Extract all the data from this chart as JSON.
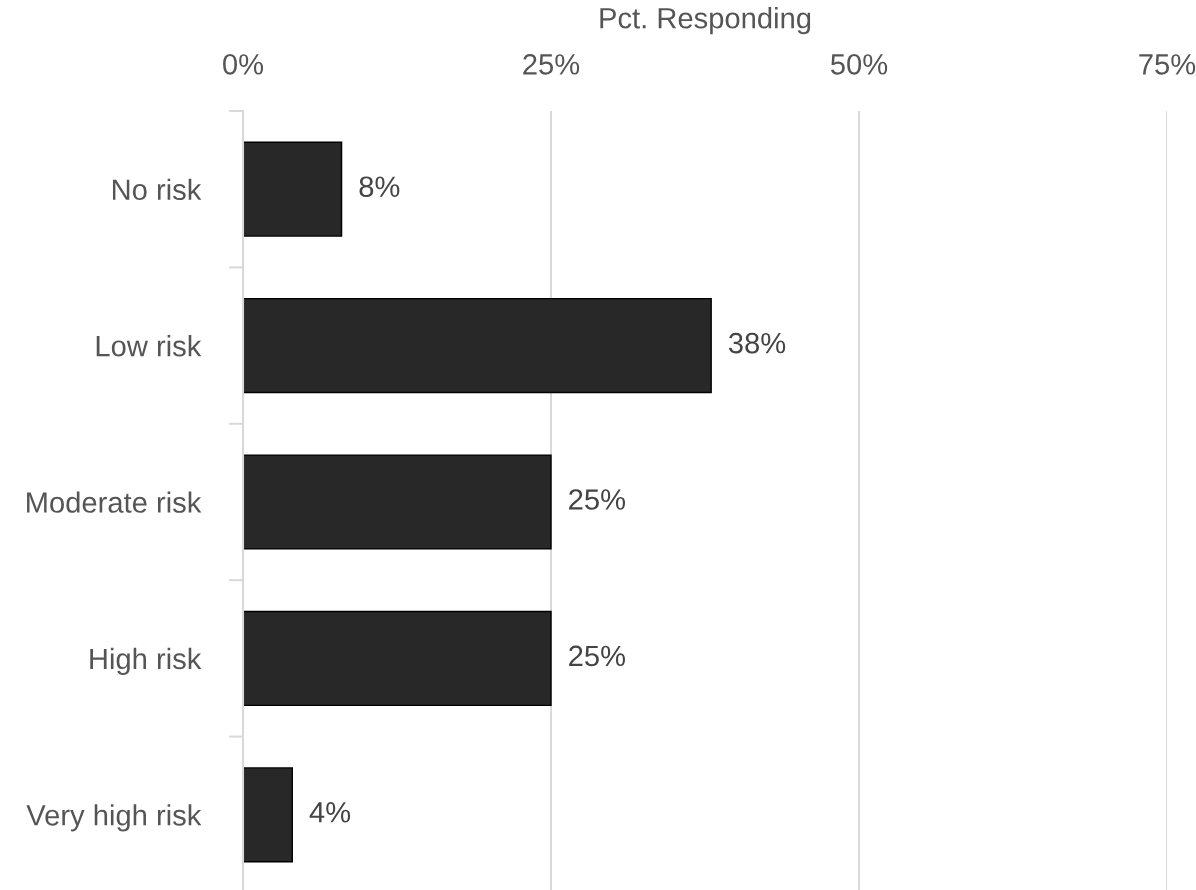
{
  "chart_data": {
    "type": "bar",
    "orientation": "horizontal",
    "xlabel": "Pct. Responding",
    "categories": [
      "No risk",
      "Low risk",
      "Moderate risk",
      "High risk",
      "Very high risk"
    ],
    "values": [
      8,
      38,
      25,
      25,
      4
    ],
    "value_labels": [
      "8%",
      "38%",
      "25%",
      "25%",
      "4%"
    ],
    "color": "#282828",
    "xlim": [
      0,
      75
    ],
    "xticks": [
      {
        "value": 0,
        "label": "0%"
      },
      {
        "value": 25,
        "label": "25%"
      },
      {
        "value": 50,
        "label": "50%"
      },
      {
        "value": 75,
        "label": "75%"
      }
    ],
    "grid": "x"
  }
}
